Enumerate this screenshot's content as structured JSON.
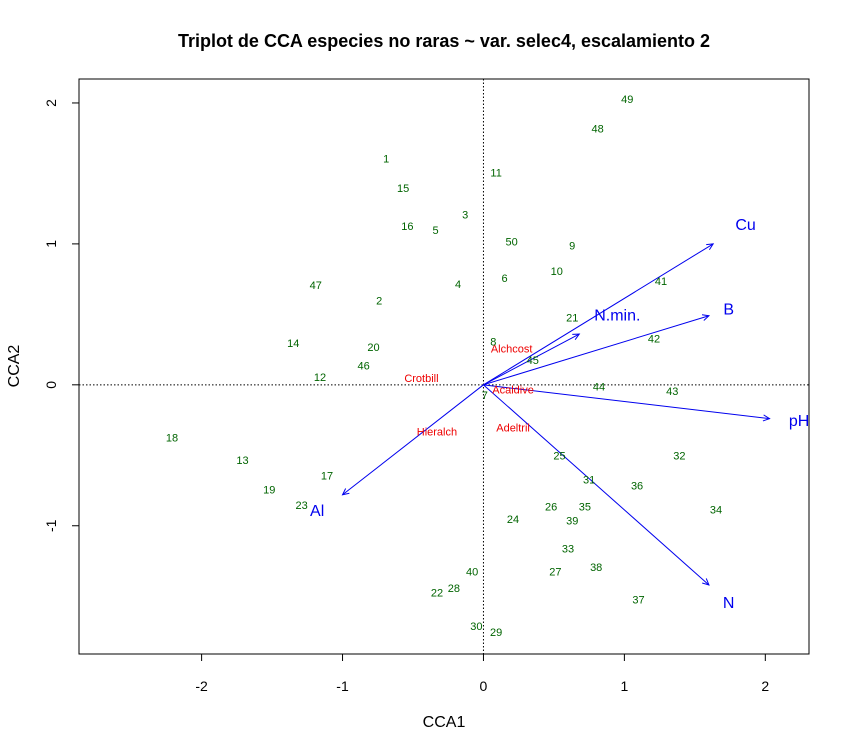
{
  "chart_data": {
    "type": "scatter",
    "title": "Triplot de CCA especies no raras ~ var. selec4, escalamiento 2",
    "xlabel": "CCA1",
    "ylabel": "CCA2",
    "xlim": [
      -2.87,
      2.31
    ],
    "ylim": [
      -1.91,
      2.17
    ],
    "xticks": [
      -2,
      -1,
      0,
      1,
      2
    ],
    "yticks": [
      -1,
      0,
      1,
      2
    ],
    "reference_lines": {
      "x": 0,
      "y": 0,
      "style": "dotted"
    },
    "colors": {
      "sites": "#006400",
      "species": "#ee0000",
      "biplot": "#0000ee"
    },
    "sites": [
      {
        "label": "49",
        "x": 1.02,
        "y": 2.02
      },
      {
        "label": "48",
        "x": 0.81,
        "y": 1.81
      },
      {
        "label": "1",
        "x": -0.69,
        "y": 1.6
      },
      {
        "label": "11",
        "x": 0.09,
        "y": 1.5
      },
      {
        "label": "15",
        "x": -0.57,
        "y": 1.39
      },
      {
        "label": "3",
        "x": -0.13,
        "y": 1.2
      },
      {
        "label": "16",
        "x": -0.54,
        "y": 1.12
      },
      {
        "label": "5",
        "x": -0.34,
        "y": 1.09
      },
      {
        "label": "50",
        "x": 0.2,
        "y": 1.01
      },
      {
        "label": "9",
        "x": 0.63,
        "y": 0.98
      },
      {
        "label": "10",
        "x": 0.52,
        "y": 0.8
      },
      {
        "label": "6",
        "x": 0.15,
        "y": 0.75
      },
      {
        "label": "41",
        "x": 1.26,
        "y": 0.73
      },
      {
        "label": "47",
        "x": -1.19,
        "y": 0.7
      },
      {
        "label": "4",
        "x": -0.18,
        "y": 0.71
      },
      {
        "label": "2",
        "x": -0.74,
        "y": 0.59
      },
      {
        "label": "21",
        "x": 0.63,
        "y": 0.47
      },
      {
        "label": "42",
        "x": 1.21,
        "y": 0.32
      },
      {
        "label": "14",
        "x": -1.35,
        "y": 0.29
      },
      {
        "label": "8",
        "x": 0.07,
        "y": 0.3
      },
      {
        "label": "20",
        "x": -0.78,
        "y": 0.26
      },
      {
        "label": "45",
        "x": 0.35,
        "y": 0.17
      },
      {
        "label": "46",
        "x": -0.85,
        "y": 0.13
      },
      {
        "label": "12",
        "x": -1.16,
        "y": 0.05
      },
      {
        "label": "44",
        "x": 0.82,
        "y": -0.02
      },
      {
        "label": "43",
        "x": 1.34,
        "y": -0.05
      },
      {
        "label": "7",
        "x": 0.01,
        "y": -0.08
      },
      {
        "label": "18",
        "x": -2.21,
        "y": -0.38
      },
      {
        "label": "25",
        "x": 0.54,
        "y": -0.51
      },
      {
        "label": "32",
        "x": 1.39,
        "y": -0.51
      },
      {
        "label": "13",
        "x": -1.71,
        "y": -0.54
      },
      {
        "label": "31",
        "x": 0.75,
        "y": -0.68
      },
      {
        "label": "17",
        "x": -1.11,
        "y": -0.65
      },
      {
        "label": "36",
        "x": 1.09,
        "y": -0.72
      },
      {
        "label": "19",
        "x": -1.52,
        "y": -0.75
      },
      {
        "label": "23",
        "x": -1.29,
        "y": -0.86
      },
      {
        "label": "26",
        "x": 0.48,
        "y": -0.87
      },
      {
        "label": "35",
        "x": 0.72,
        "y": -0.87
      },
      {
        "label": "34",
        "x": 1.65,
        "y": -0.89
      },
      {
        "label": "24",
        "x": 0.21,
        "y": -0.96
      },
      {
        "label": "39",
        "x": 0.63,
        "y": -0.97
      },
      {
        "label": "33",
        "x": 0.6,
        "y": -1.17
      },
      {
        "label": "38",
        "x": 0.8,
        "y": -1.3
      },
      {
        "label": "40",
        "x": -0.08,
        "y": -1.33
      },
      {
        "label": "27",
        "x": 0.51,
        "y": -1.33
      },
      {
        "label": "28",
        "x": -0.21,
        "y": -1.45
      },
      {
        "label": "22",
        "x": -0.33,
        "y": -1.48
      },
      {
        "label": "37",
        "x": 1.1,
        "y": -1.53
      },
      {
        "label": "30",
        "x": -0.05,
        "y": -1.72
      },
      {
        "label": "29",
        "x": 0.09,
        "y": -1.76
      }
    ],
    "species": [
      {
        "label": "Alchcost",
        "x": 0.2,
        "y": 0.25
      },
      {
        "label": "Crotbill",
        "x": -0.44,
        "y": 0.04
      },
      {
        "label": "Acaldive",
        "x": 0.21,
        "y": -0.04
      },
      {
        "label": "Hieralch",
        "x": -0.33,
        "y": -0.34
      },
      {
        "label": "Adeltril",
        "x": 0.21,
        "y": -0.31
      }
    ],
    "biplot": [
      {
        "label": "Cu",
        "x": 1.63,
        "y": 1.0,
        "label_x": 1.86,
        "label_y": 1.13
      },
      {
        "label": "B",
        "x": 1.6,
        "y": 0.49,
        "label_x": 1.74,
        "label_y": 0.53
      },
      {
        "label": "pH",
        "x": 2.03,
        "y": -0.24,
        "label_x": 2.24,
        "label_y": -0.26
      },
      {
        "label": "N.min.",
        "x": 0.68,
        "y": 0.36,
        "label_x": 0.95,
        "label_y": 0.49
      },
      {
        "label": "N",
        "x": 1.6,
        "y": -1.42,
        "label_x": 1.74,
        "label_y": -1.55
      },
      {
        "label": "Al",
        "x": -1.0,
        "y": -0.78,
        "label_x": -1.18,
        "label_y": -0.9
      }
    ]
  }
}
